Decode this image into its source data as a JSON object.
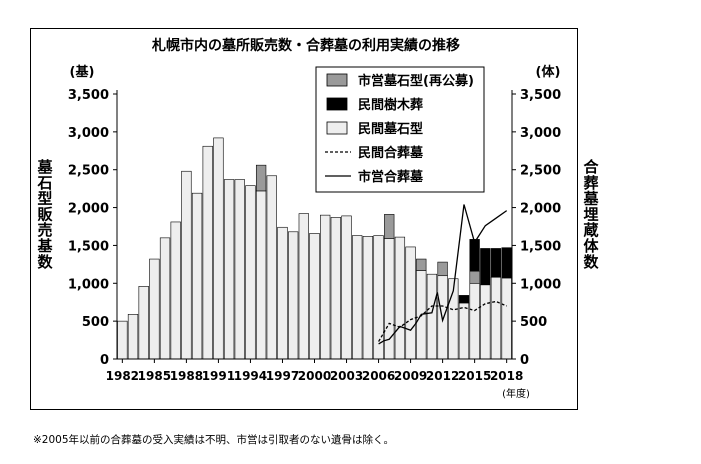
{
  "chart_data": {
    "type": "bar",
    "title": "札幌市内の墓所販売数・合葬墓の利用実績の推移",
    "ylabel": "墓石型販売基数",
    "y2label": "合葬墓埋蔵体数",
    "yunit": "(基)",
    "y2unit": "(体)",
    "xunit": "(年度)",
    "ylim": [
      0,
      3500
    ],
    "y2lim": [
      0,
      3500
    ],
    "yticks": [
      "0",
      "500",
      "1,000",
      "1,500",
      "2,000",
      "2,500",
      "3,000",
      "3,500"
    ],
    "y2ticks": [
      "0",
      "500",
      "1,000",
      "1,500",
      "2,000",
      "2,500",
      "3,000",
      "3,500"
    ],
    "xticks": [
      "1982",
      "1985",
      "1988",
      "1991",
      "1994",
      "1997",
      "2000",
      "2003",
      "2006",
      "2009",
      "2012",
      "2015",
      "2018"
    ],
    "years": [
      1982,
      1983,
      1984,
      1985,
      1986,
      1987,
      1988,
      1989,
      1990,
      1991,
      1992,
      1993,
      1994,
      1995,
      1996,
      1997,
      1998,
      1999,
      2000,
      2001,
      2002,
      2003,
      2004,
      2005,
      2006,
      2007,
      2008,
      2009,
      2010,
      2011,
      2012,
      2013,
      2014,
      2015,
      2016,
      2017,
      2018
    ],
    "series": [
      {
        "name": "民間墓石型",
        "kind": "bar",
        "color": "#eeeeee",
        "values": [
          500,
          590,
          960,
          1320,
          1600,
          1810,
          2480,
          2190,
          2810,
          2920,
          2370,
          2370,
          2290,
          2220,
          2420,
          1740,
          1680,
          1920,
          1660,
          1900,
          1870,
          1890,
          1630,
          1620,
          1630,
          1590,
          1610,
          1480,
          1170,
          1120,
          1100,
          1060,
          740,
          1000,
          980,
          1080,
          1070
        ]
      },
      {
        "name": "市営墓石型(再公募)",
        "kind": "bar",
        "color": "#9a9a9a",
        "values": [
          0,
          0,
          0,
          0,
          0,
          0,
          0,
          0,
          0,
          0,
          0,
          0,
          0,
          340,
          0,
          0,
          0,
          0,
          0,
          0,
          0,
          0,
          0,
          0,
          0,
          320,
          0,
          0,
          150,
          0,
          180,
          0,
          0,
          160,
          0,
          0,
          0
        ]
      },
      {
        "name": "民間樹木葬",
        "kind": "bar",
        "color": "#000000",
        "values": [
          0,
          0,
          0,
          0,
          0,
          0,
          0,
          0,
          0,
          0,
          0,
          0,
          0,
          0,
          0,
          0,
          0,
          0,
          0,
          0,
          0,
          0,
          0,
          0,
          0,
          0,
          0,
          0,
          0,
          0,
          0,
          0,
          100,
          420,
          480,
          380,
          400
        ]
      },
      {
        "name": "民間合葬墓",
        "kind": "line",
        "dash": true,
        "color": "#000000",
        "x": [
          2006,
          2007,
          2008,
          2009,
          2010,
          2011,
          2012,
          2013,
          2014,
          2015,
          2016,
          2017,
          2018
        ],
        "values": [
          230,
          470,
          420,
          520,
          570,
          700,
          700,
          650,
          680,
          640,
          730,
          760,
          700
        ]
      },
      {
        "name": "市営合葬墓",
        "kind": "line",
        "dash": false,
        "color": "#000000",
        "x": [
          2006,
          2006.5,
          2007,
          2008,
          2009,
          2009.5,
          2010,
          2011,
          2011.5,
          2012,
          2013,
          2014,
          2015,
          2016,
          2017,
          2018
        ],
        "values": [
          200,
          240,
          260,
          430,
          380,
          470,
          590,
          610,
          880,
          510,
          900,
          2040,
          1540,
          1760,
          1860,
          1960
        ]
      }
    ],
    "grid": false,
    "legend": "top-right"
  },
  "footnote": "※2005年以前の合葬墓の受入実績は不明、市営は引取者のない遺骨は除く。"
}
